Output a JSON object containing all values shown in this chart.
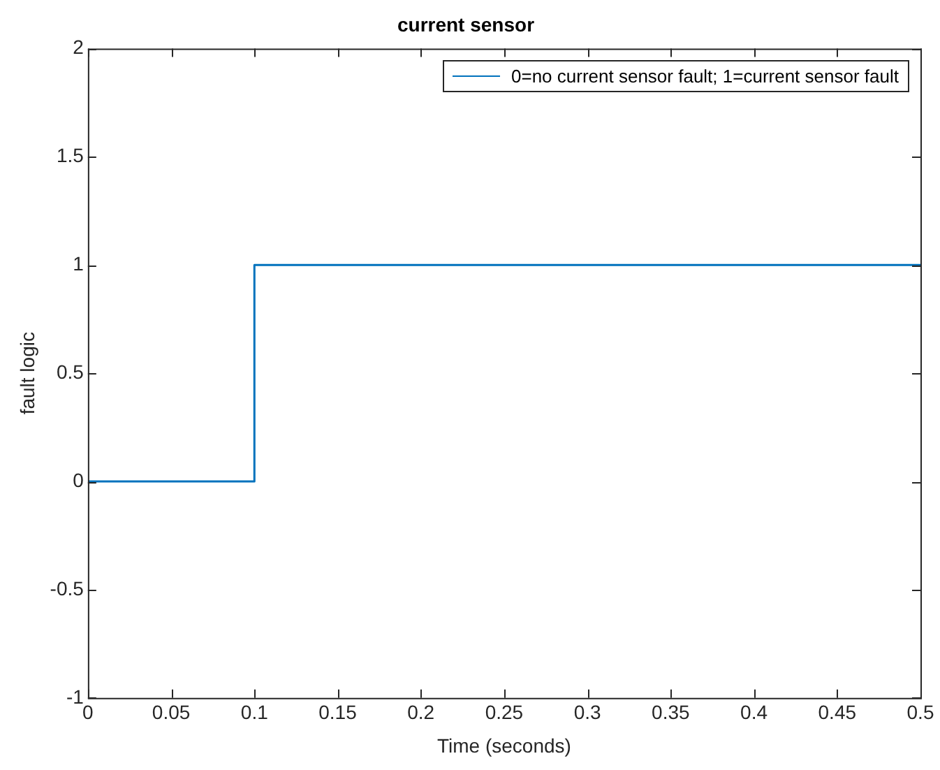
{
  "chart_data": {
    "type": "step",
    "title": "current sensor",
    "xlabel": "Time (seconds)",
    "ylabel": "fault logic",
    "x": [
      0,
      0.1,
      0.5
    ],
    "series": [
      {
        "name": "0=no current sensor fault; 1=current sensor fault",
        "color": "#0072bd",
        "values": [
          0,
          1,
          1
        ]
      }
    ],
    "xlim": [
      0,
      0.5
    ],
    "xticks": [
      0,
      0.05,
      0.1,
      0.15,
      0.2,
      0.25,
      0.3,
      0.35,
      0.4,
      0.45,
      0.5
    ],
    "ylim": [
      -1,
      2
    ],
    "yticks": [
      -1,
      -0.5,
      0,
      0.5,
      1,
      1.5,
      2
    ],
    "legend": "top right"
  }
}
